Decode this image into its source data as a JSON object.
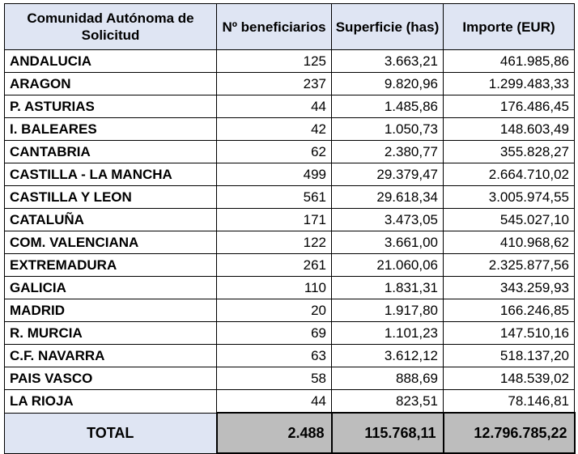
{
  "headers": {
    "region": "Comunidad Autónoma de Solicitud",
    "beneficiaries": "Nº beneficiarios",
    "area": "Superficie (has)",
    "amount": "Importe (EUR)"
  },
  "rows": [
    {
      "region": "ANDALUCIA",
      "beneficiaries": "125",
      "area": "3.663,21",
      "amount": "461.985,86"
    },
    {
      "region": "ARAGON",
      "beneficiaries": "237",
      "area": "9.820,96",
      "amount": "1.299.483,33"
    },
    {
      "region": "P. ASTURIAS",
      "beneficiaries": "44",
      "area": "1.485,86",
      "amount": "176.486,45"
    },
    {
      "region": "I. BALEARES",
      "beneficiaries": "42",
      "area": "1.050,73",
      "amount": "148.603,49"
    },
    {
      "region": "CANTABRIA",
      "beneficiaries": "62",
      "area": "2.380,77",
      "amount": "355.828,27"
    },
    {
      "region": "CASTILLA - LA MANCHA",
      "beneficiaries": "499",
      "area": "29.379,47",
      "amount": "2.664.710,02"
    },
    {
      "region": "CASTILLA Y LEON",
      "beneficiaries": "561",
      "area": "29.618,34",
      "amount": "3.005.974,55"
    },
    {
      "region": "CATALUÑA",
      "beneficiaries": "171",
      "area": "3.473,05",
      "amount": "545.027,10"
    },
    {
      "region": "COM. VALENCIANA",
      "beneficiaries": "122",
      "area": "3.661,00",
      "amount": "410.968,62"
    },
    {
      "region": "EXTREMADURA",
      "beneficiaries": "261",
      "area": "21.060,06",
      "amount": "2.325.877,56"
    },
    {
      "region": "GALICIA",
      "beneficiaries": "110",
      "area": "1.831,31",
      "amount": "343.259,93"
    },
    {
      "region": "MADRID",
      "beneficiaries": "20",
      "area": "1.917,80",
      "amount": "166.246,85"
    },
    {
      "region": "R. MURCIA",
      "beneficiaries": "69",
      "area": "1.101,23",
      "amount": "147.510,16"
    },
    {
      "region": "C.F. NAVARRA",
      "beneficiaries": "63",
      "area": "3.612,12",
      "amount": "518.137,20"
    },
    {
      "region": "PAIS VASCO",
      "beneficiaries": "58",
      "area": "888,69",
      "amount": "148.539,02"
    },
    {
      "region": "LA RIOJA",
      "beneficiaries": "44",
      "area": "823,51",
      "amount": "78.146,81"
    }
  ],
  "total": {
    "label": "TOTAL",
    "beneficiaries": "2.488",
    "area": "115.768,11",
    "amount": "12.796.785,22"
  },
  "colors": {
    "header_bg": "#dfe5f3",
    "total_bg": "#bdbdbd"
  }
}
